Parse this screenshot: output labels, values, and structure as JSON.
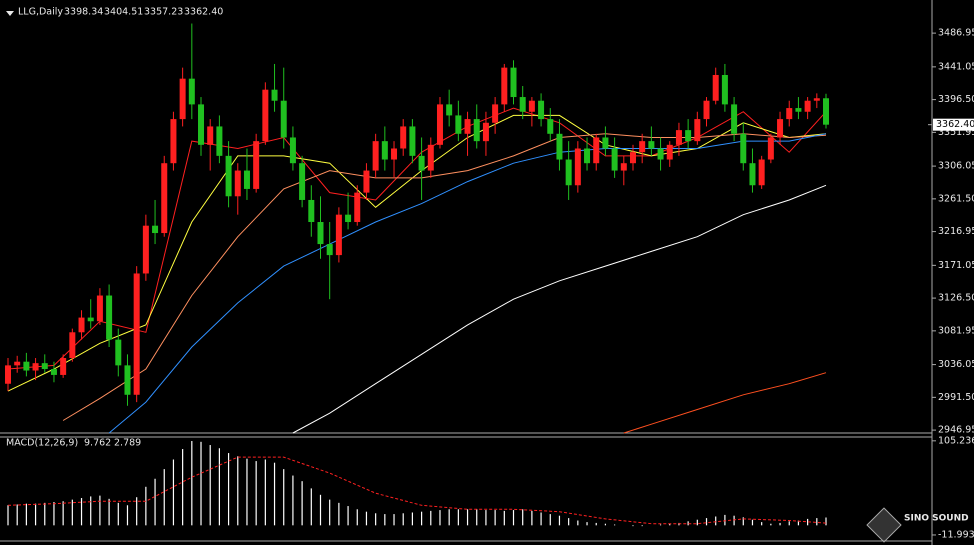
{
  "chart_data": {
    "type": "candlestick",
    "symbol": "LLG,Daily",
    "header_values": [
      "3398.34",
      "3404.51",
      "3357.23",
      "3362.40"
    ],
    "current_price": {
      "value": 3362.4,
      "label": "3362.40"
    },
    "ylim": [
      2943,
      3532
    ],
    "yticks": [
      3486.95,
      3441.05,
      {
        "value": 3396.5,
        "label": "3396.50"
      },
      3351.95,
      3306.05,
      {
        "value": 3261.5,
        "label": "3261.50"
      },
      3216.95,
      3171.05,
      {
        "value": 3126.5,
        "label": "3126.50"
      },
      3081.95,
      3036.05,
      {
        "value": 2991.5,
        "label": "2991.50"
      },
      2946.95
    ],
    "up_color": "#ff2020",
    "down_color": "#20c020",
    "candles": [
      [
        3010,
        3045,
        3000,
        3035
      ],
      [
        3035,
        3048,
        3025,
        3040
      ],
      [
        3040,
        3052,
        3020,
        3028
      ],
      [
        3028,
        3045,
        3015,
        3038
      ],
      [
        3038,
        3050,
        3025,
        3030
      ],
      [
        3030,
        3040,
        3012,
        3022
      ],
      [
        3022,
        3050,
        3018,
        3045
      ],
      [
        3045,
        3085,
        3040,
        3080
      ],
      [
        3080,
        3110,
        3070,
        3100
      ],
      [
        3100,
        3125,
        3085,
        3095
      ],
      [
        3095,
        3140,
        3090,
        3130
      ],
      [
        3130,
        3145,
        3060,
        3070
      ],
      [
        3070,
        3085,
        3020,
        3035
      ],
      [
        3035,
        3050,
        2980,
        2995
      ],
      [
        2995,
        3170,
        2985,
        3160
      ],
      [
        3160,
        3240,
        3150,
        3225
      ],
      [
        3225,
        3260,
        3200,
        3215
      ],
      [
        3215,
        3320,
        3210,
        3310
      ],
      [
        3310,
        3380,
        3300,
        3370
      ],
      [
        3370,
        3440,
        3360,
        3425
      ],
      [
        3425,
        3500,
        3370,
        3390
      ],
      [
        3390,
        3400,
        3320,
        3335
      ],
      [
        3335,
        3370,
        3300,
        3360
      ],
      [
        3360,
        3375,
        3310,
        3320
      ],
      [
        3320,
        3340,
        3250,
        3265
      ],
      [
        3265,
        3310,
        3240,
        3300
      ],
      [
        3300,
        3330,
        3260,
        3275
      ],
      [
        3275,
        3350,
        3270,
        3340
      ],
      [
        3340,
        3420,
        3335,
        3410
      ],
      [
        3410,
        3445,
        3380,
        3395
      ],
      [
        3395,
        3440,
        3330,
        3345
      ],
      [
        3345,
        3360,
        3300,
        3310
      ],
      [
        3310,
        3320,
        3250,
        3260
      ],
      [
        3260,
        3280,
        3210,
        3230
      ],
      [
        3230,
        3265,
        3180,
        3200
      ],
      [
        3200,
        3230,
        3125,
        3185
      ],
      [
        3185,
        3250,
        3175,
        3240
      ],
      [
        3240,
        3270,
        3220,
        3230
      ],
      [
        3230,
        3280,
        3225,
        3270
      ],
      [
        3270,
        3310,
        3260,
        3300
      ],
      [
        3300,
        3350,
        3290,
        3340
      ],
      [
        3340,
        3360,
        3300,
        3315
      ],
      [
        3315,
        3340,
        3290,
        3330
      ],
      [
        3330,
        3370,
        3320,
        3360
      ],
      [
        3360,
        3370,
        3310,
        3320
      ],
      [
        3320,
        3345,
        3260,
        3300
      ],
      [
        3300,
        3345,
        3290,
        3335
      ],
      [
        3335,
        3400,
        3330,
        3390
      ],
      [
        3390,
        3410,
        3360,
        3375
      ],
      [
        3375,
        3395,
        3340,
        3350
      ],
      [
        3350,
        3380,
        3320,
        3370
      ],
      [
        3370,
        3390,
        3330,
        3340
      ],
      [
        3340,
        3380,
        3320,
        3365
      ],
      [
        3365,
        3400,
        3350,
        3390
      ],
      [
        3390,
        3445,
        3380,
        3440
      ],
      [
        3440,
        3450,
        3390,
        3400
      ],
      [
        3400,
        3415,
        3370,
        3380
      ],
      [
        3380,
        3400,
        3360,
        3395
      ],
      [
        3395,
        3405,
        3360,
        3370
      ],
      [
        3370,
        3385,
        3340,
        3350
      ],
      [
        3350,
        3370,
        3300,
        3315
      ],
      [
        3315,
        3340,
        3260,
        3280
      ],
      [
        3280,
        3340,
        3270,
        3330
      ],
      [
        3330,
        3345,
        3300,
        3310
      ],
      [
        3310,
        3350,
        3300,
        3345
      ],
      [
        3345,
        3360,
        3320,
        3330
      ],
      [
        3330,
        3345,
        3290,
        3300
      ],
      [
        3300,
        3320,
        3280,
        3310
      ],
      [
        3310,
        3335,
        3300,
        3325
      ],
      [
        3325,
        3350,
        3310,
        3340
      ],
      [
        3340,
        3360,
        3320,
        3330
      ],
      [
        3330,
        3345,
        3300,
        3315
      ],
      [
        3315,
        3340,
        3305,
        3335
      ],
      [
        3335,
        3365,
        3320,
        3355
      ],
      [
        3355,
        3370,
        3330,
        3340
      ],
      [
        3340,
        3380,
        3335,
        3370
      ],
      [
        3370,
        3400,
        3360,
        3395
      ],
      [
        3395,
        3440,
        3390,
        3430
      ],
      [
        3430,
        3445,
        3380,
        3390
      ],
      [
        3390,
        3400,
        3340,
        3350
      ],
      [
        3350,
        3365,
        3300,
        3310
      ],
      [
        3310,
        3330,
        3270,
        3280
      ],
      [
        3280,
        3320,
        3275,
        3315
      ],
      [
        3315,
        3350,
        3310,
        3345
      ],
      [
        3345,
        3380,
        3335,
        3370
      ],
      [
        3370,
        3395,
        3360,
        3385
      ],
      [
        3385,
        3400,
        3370,
        3380
      ],
      [
        3380,
        3400,
        3370,
        3395
      ],
      [
        3395,
        3405,
        3385,
        3398.34
      ],
      [
        3398.34,
        3404.51,
        3357.23,
        3362.4
      ]
    ],
    "moving_averages": [
      {
        "color": "#ff2020",
        "x": [
          0,
          5,
          10,
          15,
          20,
          25,
          30,
          35,
          40,
          45,
          50,
          55,
          60,
          65,
          70,
          75,
          80,
          85,
          89
        ],
        "values": [
          3030,
          3035,
          3095,
          3080,
          3340,
          3330,
          3345,
          3270,
          3260,
          3325,
          3360,
          3385,
          3365,
          3320,
          3320,
          3345,
          3380,
          3325,
          3380
        ]
      },
      {
        "color": "#ffff40",
        "x": [
          0,
          5,
          10,
          15,
          20,
          25,
          30,
          35,
          40,
          45,
          50,
          55,
          60,
          65,
          70,
          75,
          80,
          85,
          89
        ],
        "values": [
          3000,
          3030,
          3065,
          3090,
          3230,
          3320,
          3320,
          3310,
          3250,
          3300,
          3345,
          3375,
          3375,
          3335,
          3320,
          3330,
          3365,
          3345,
          3350
        ]
      },
      {
        "color": "#ff9060",
        "x": [
          6,
          10,
          15,
          20,
          25,
          30,
          35,
          40,
          45,
          50,
          55,
          60,
          65,
          70,
          75,
          80,
          85,
          89
        ],
        "values": [
          2960,
          2990,
          3030,
          3130,
          3210,
          3275,
          3300,
          3290,
          3290,
          3300,
          3320,
          3345,
          3350,
          3345,
          3345,
          3350,
          3345,
          3348
        ]
      },
      {
        "color": "#3090ff",
        "x": [
          11,
          15,
          20,
          25,
          30,
          35,
          40,
          45,
          50,
          55,
          60,
          65,
          70,
          75,
          80,
          85,
          89
        ],
        "values": [
          2943,
          2985,
          3060,
          3120,
          3170,
          3200,
          3230,
          3255,
          3285,
          3310,
          3325,
          3330,
          3330,
          3330,
          3340,
          3340,
          3350
        ]
      },
      {
        "color": "#ffffff",
        "x": [
          31,
          35,
          40,
          45,
          50,
          55,
          60,
          65,
          70,
          75,
          80,
          85,
          89
        ],
        "values": [
          2943,
          2970,
          3010,
          3050,
          3090,
          3125,
          3150,
          3170,
          3190,
          3210,
          3240,
          3260,
          3280
        ]
      },
      {
        "color": "#ff5020",
        "x": [
          67,
          70,
          75,
          80,
          85,
          89
        ],
        "values": [
          2943,
          2955,
          2975,
          2995,
          3010,
          3025
        ]
      }
    ],
    "indicator": {
      "type": "macd",
      "label": "MACD(12,26,9)",
      "ylim": [
        -22,
        110
      ],
      "yticks": [
        105.236,
        -11.993
      ],
      "color": "#ffffff",
      "values": [
        25,
        26,
        27,
        27,
        28,
        29,
        30,
        32,
        34,
        36,
        37,
        33,
        28,
        25,
        35,
        48,
        58,
        70,
        82,
        95,
        105,
        104,
        100,
        96,
        90,
        86,
        83,
        80,
        82,
        78,
        70,
        62,
        55,
        46,
        38,
        32,
        28,
        24,
        20,
        17,
        15,
        14,
        14,
        15,
        16,
        17,
        18,
        19,
        20,
        20,
        20,
        20,
        19,
        19,
        18,
        19,
        20,
        18,
        16,
        14,
        12,
        9,
        6,
        4,
        3,
        2,
        1,
        0,
        -1,
        -1,
        0,
        1,
        2,
        3,
        5,
        7,
        9,
        11,
        13,
        12,
        10,
        7,
        4,
        2,
        3,
        5,
        6,
        8,
        9,
        9.762
      ],
      "signal": {
        "color": "#ff2020",
        "x": [
          0,
          5,
          10,
          15,
          20,
          25,
          30,
          35,
          40,
          45,
          50,
          55,
          60,
          65,
          70,
          75,
          80,
          85,
          89
        ],
        "values": [
          25,
          27,
          30,
          30,
          60,
          85,
          85,
          65,
          40,
          25,
          20,
          20,
          17,
          8,
          2,
          2,
          8,
          6,
          2.789
        ]
      }
    }
  },
  "logo": {
    "name": "SINO SOUND"
  }
}
